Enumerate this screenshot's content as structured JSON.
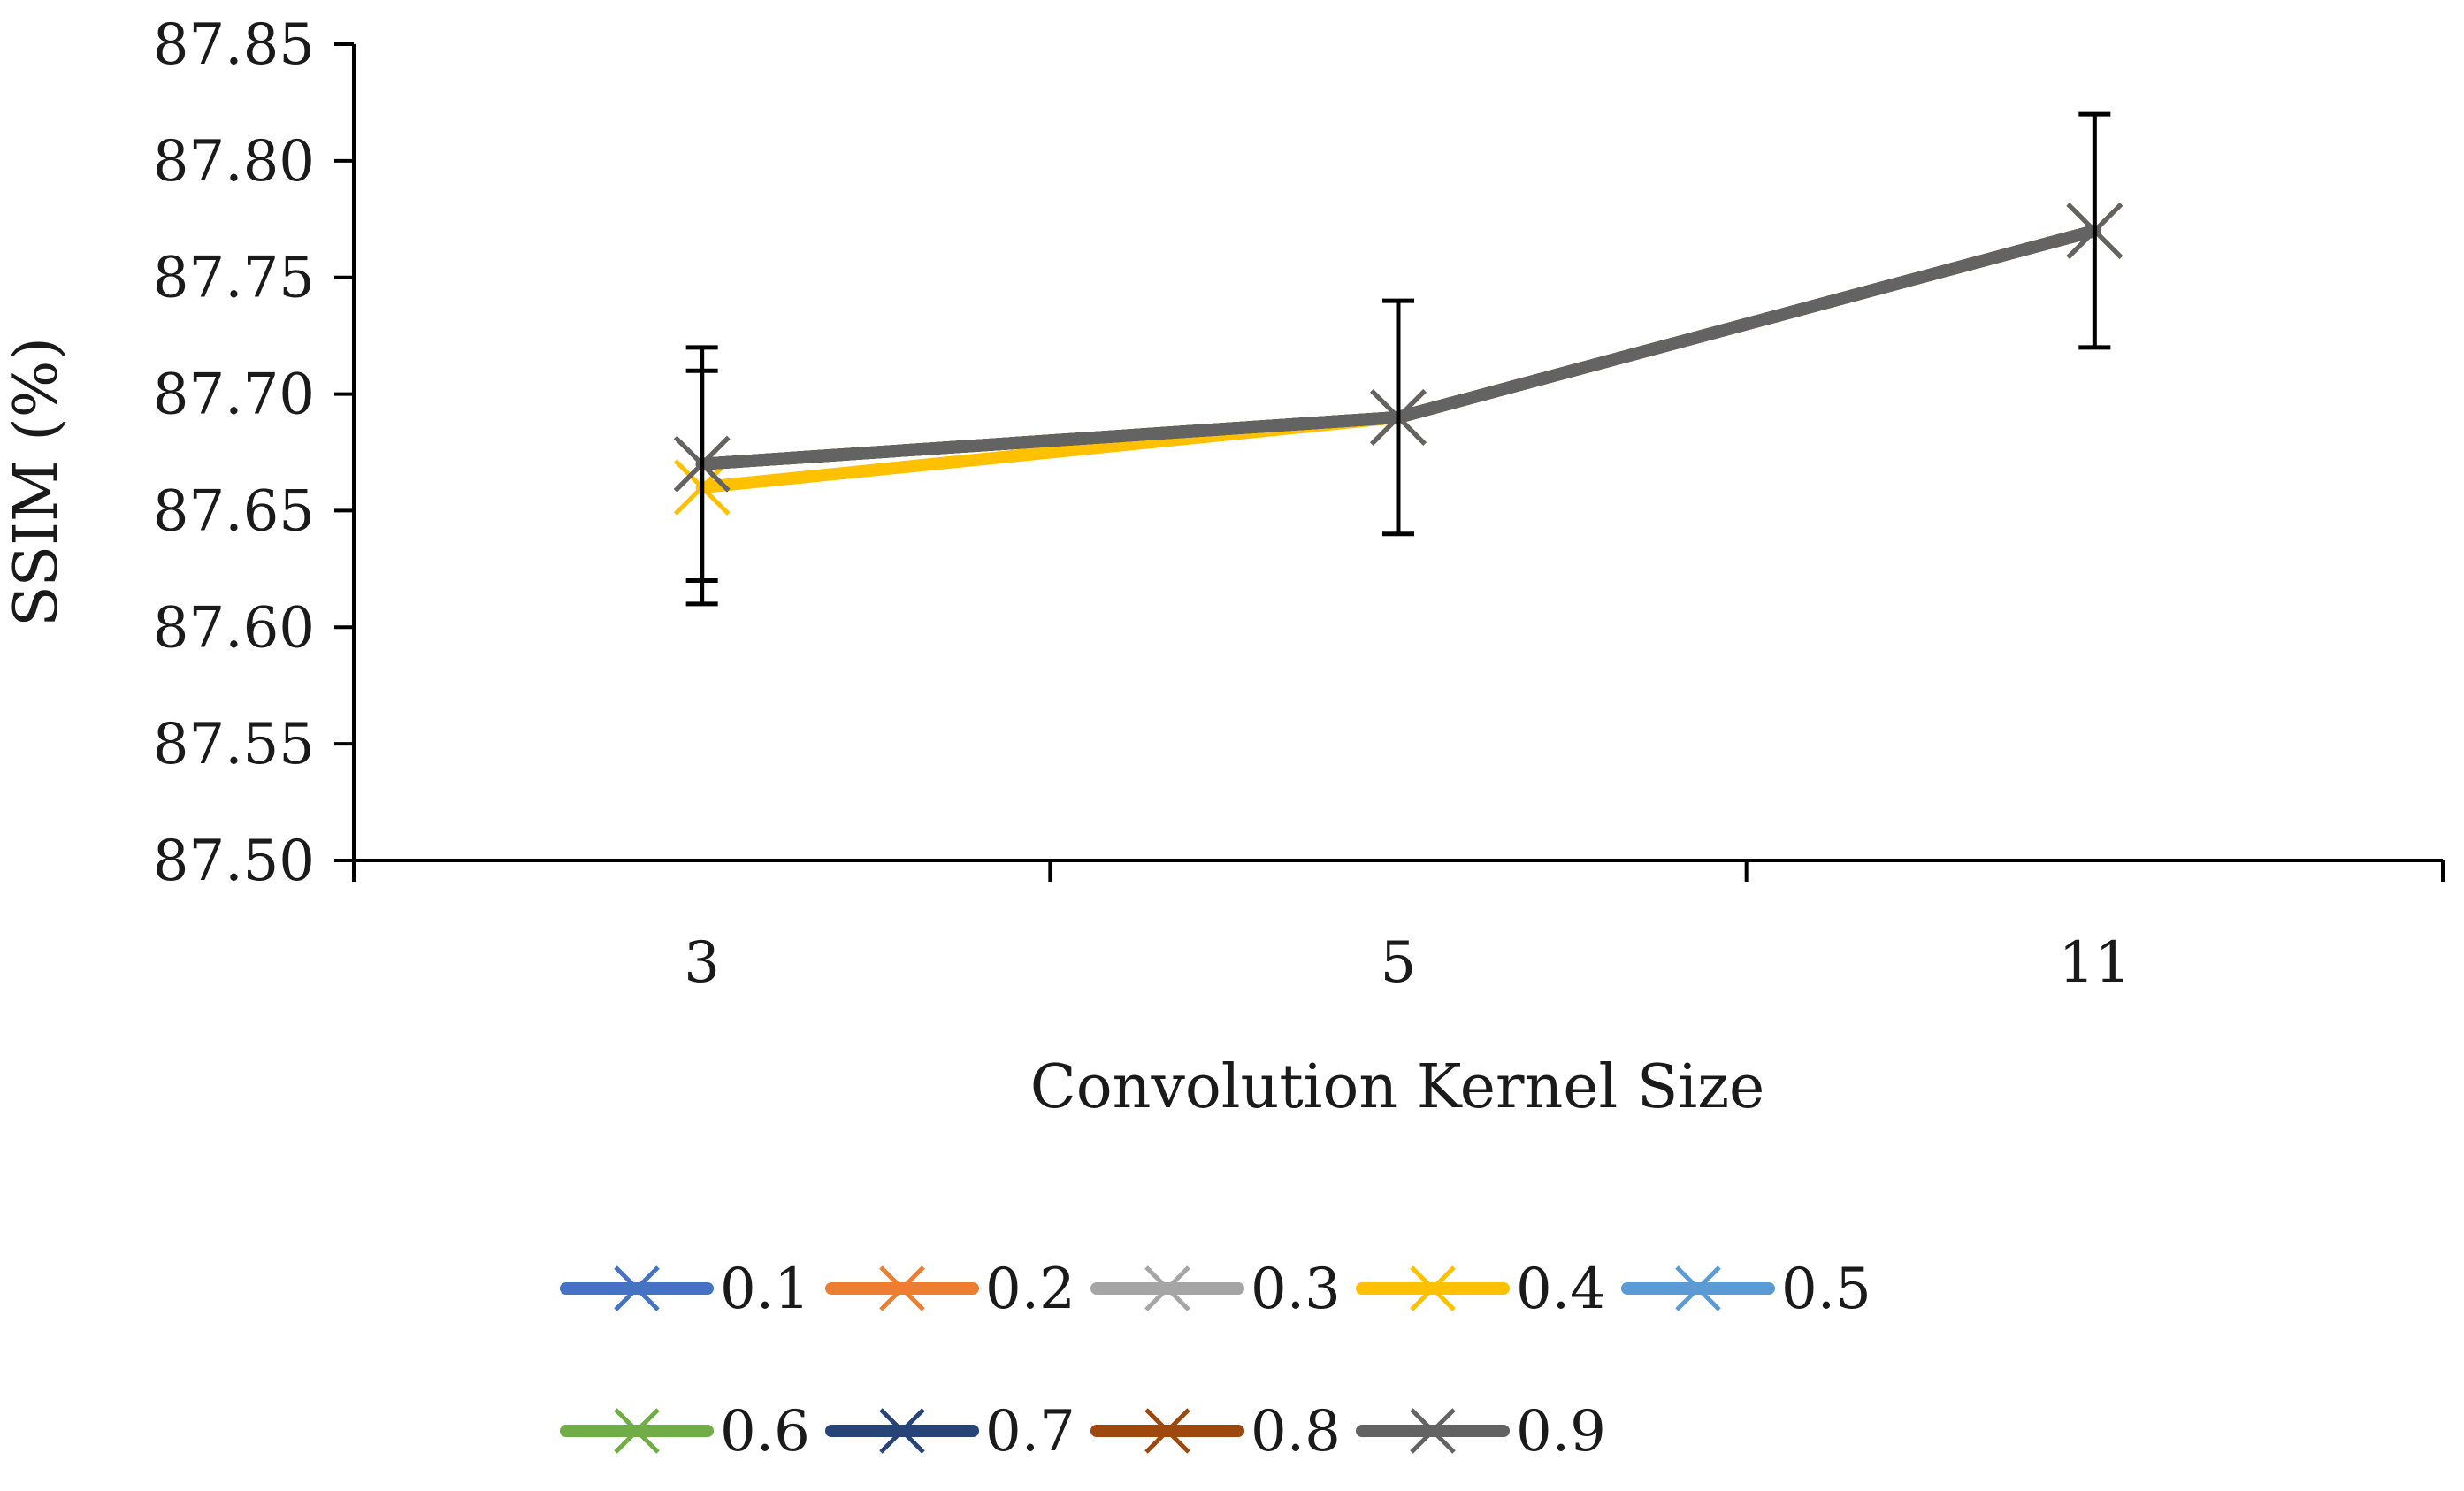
{
  "chart_data": {
    "type": "line",
    "title": "",
    "xlabel": "Convolution Kernel Size",
    "ylabel": "SSIM (%)",
    "categories": [
      "3",
      "5",
      "11"
    ],
    "ylim": [
      87.5,
      87.85
    ],
    "yticks": [
      "87.50",
      "87.55",
      "87.60",
      "87.65",
      "87.70",
      "87.75",
      "87.80",
      "87.85"
    ],
    "grid": false,
    "legend_position": "bottom",
    "error_bar": 0.05,
    "series": [
      {
        "name": "0.1",
        "color": "#4472C4",
        "values": [
          87.67,
          87.69,
          87.77
        ]
      },
      {
        "name": "0.2",
        "color": "#ED7D31",
        "values": [
          87.67,
          87.69,
          87.77
        ]
      },
      {
        "name": "0.3",
        "color": "#A5A5A5",
        "values": [
          87.67,
          87.69,
          87.77
        ]
      },
      {
        "name": "0.4",
        "color": "#FFC000",
        "values": [
          87.66,
          87.69,
          87.77
        ]
      },
      {
        "name": "0.5",
        "color": "#5B9BD5",
        "values": [
          87.67,
          87.69,
          87.77
        ]
      },
      {
        "name": "0.6",
        "color": "#70AD47",
        "values": [
          87.67,
          87.69,
          87.77
        ]
      },
      {
        "name": "0.7",
        "color": "#264478",
        "values": [
          87.67,
          87.69,
          87.77
        ]
      },
      {
        "name": "0.8",
        "color": "#9E480E",
        "values": [
          87.67,
          87.69,
          87.77
        ]
      },
      {
        "name": "0.9",
        "color": "#636363",
        "values": [
          87.67,
          87.69,
          87.77
        ]
      }
    ]
  }
}
